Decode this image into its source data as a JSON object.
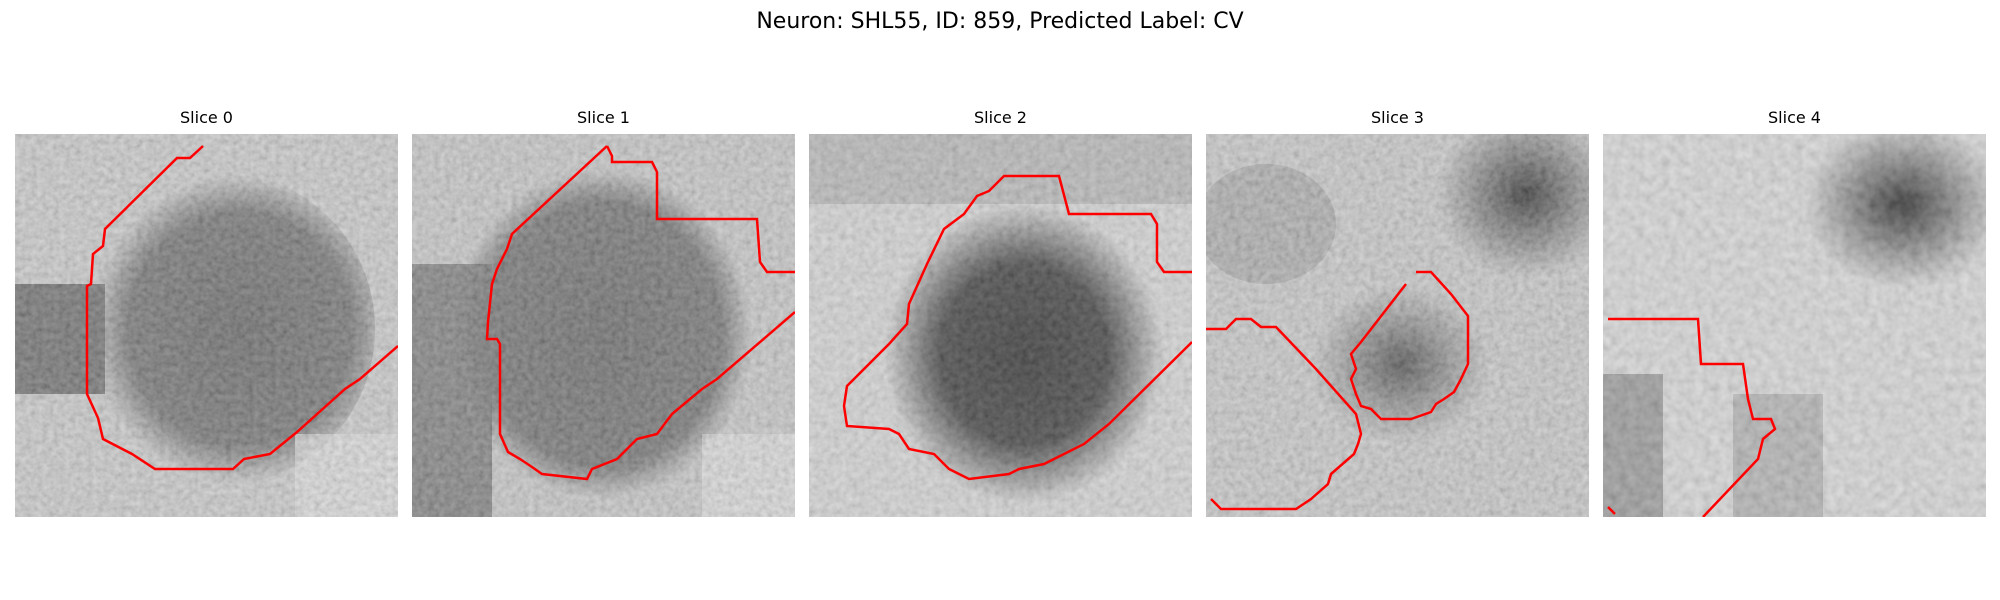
{
  "figure": {
    "title": "Neuron: SHL55, ID: 859, Predicted Label: CV"
  },
  "panels": [
    {
      "title": "Slice 0",
      "content": "grayscale micrograph tile with red segmentation contour"
    },
    {
      "title": "Slice 1",
      "content": "grayscale micrograph tile with red segmentation contour"
    },
    {
      "title": "Slice 2",
      "content": "grayscale micrograph tile with red segmentation contour"
    },
    {
      "title": "Slice 3",
      "content": "grayscale micrograph tile with red segmentation contour"
    },
    {
      "title": "Slice 4",
      "content": "grayscale micrograph tile with red segmentation contour"
    }
  ],
  "colors": {
    "contour": "#ff0000",
    "background": "#ffffff"
  }
}
